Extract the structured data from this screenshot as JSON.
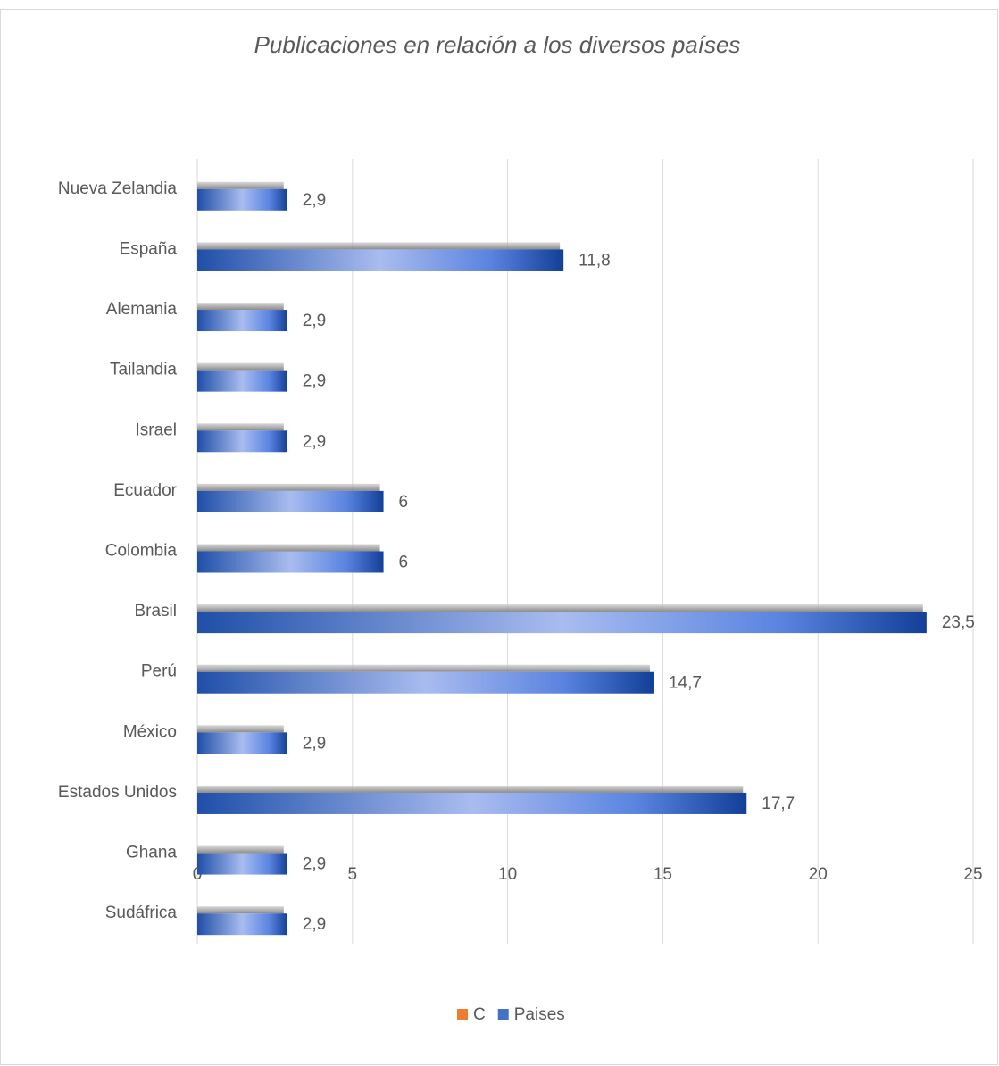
{
  "chart_data": {
    "type": "bar",
    "orientation": "horizontal",
    "title": "Publicaciones en relación a los diversos países",
    "categories": [
      "Nueva Zelandia",
      "España",
      "Alemania",
      "Tailandia",
      "Israel",
      "Ecuador",
      "Colombia",
      "Brasil",
      "Perú",
      "México",
      "Estados Unidos",
      "Ghana",
      "Sudáfrica"
    ],
    "series": [
      {
        "name": "C",
        "color": "#ed7d31",
        "values": [
          null,
          null,
          null,
          null,
          null,
          null,
          null,
          null,
          null,
          null,
          null,
          null,
          null
        ]
      },
      {
        "name": "Paises",
        "color": "#4472c4",
        "values": [
          2.9,
          11.8,
          2.9,
          2.9,
          2.9,
          6,
          6,
          23.5,
          14.7,
          2.9,
          17.7,
          2.9,
          2.9
        ],
        "value_labels": [
          "2,9",
          "11,8",
          "2,9",
          "2,9",
          "2,9",
          "6",
          "6",
          "23,5",
          "14,7",
          "2,9",
          "17,7",
          "2,9",
          "2,9"
        ]
      }
    ],
    "xlim": [
      0,
      25
    ],
    "xticks": [
      0,
      5,
      10,
      15,
      20,
      25
    ],
    "grid": true,
    "legend": "bottom"
  }
}
